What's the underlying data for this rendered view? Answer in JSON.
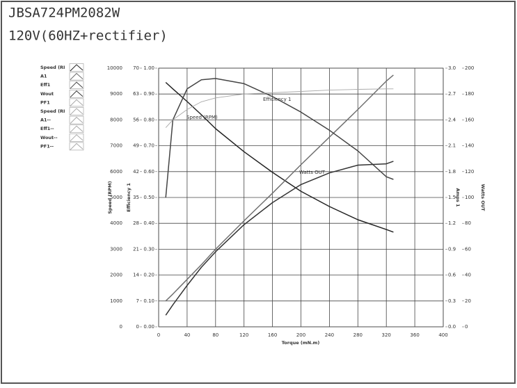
{
  "title": "JBSA724PM2082W",
  "subtitle": "120V(60HZ+rectifier)",
  "chart_data": {
    "type": "line",
    "x_label": "Torque (mN.m)",
    "xlim": [
      0,
      400
    ],
    "xticks": [
      0,
      40,
      80,
      120,
      160,
      200,
      240,
      280,
      320,
      360,
      400
    ],
    "grid": true,
    "axes": [
      {
        "title": "Speed (RPM)",
        "lim": [
          0,
          10000
        ],
        "ticks": [
          0,
          1000,
          2000,
          3000,
          4000,
          5000,
          6000,
          7000,
          8000,
          9000,
          10000
        ],
        "side": "left"
      },
      {
        "lim": [
          0,
          70
        ],
        "ticks": [
          0,
          7,
          14,
          21,
          28,
          35,
          42,
          49,
          56,
          63,
          70
        ],
        "side": "left"
      },
      {
        "title": "Efficiency 1",
        "lim": [
          0,
          1
        ],
        "ticks": [
          {
            "value": 0,
            "label": "0.00"
          },
          {
            "value": 0.1,
            "label": "0.10"
          },
          {
            "value": 0.2,
            "label": "0.20"
          },
          {
            "value": 0.3,
            "label": "0.30"
          },
          {
            "value": 0.4,
            "label": "0.40"
          },
          {
            "value": 0.5,
            "label": "0.50"
          },
          {
            "value": 0.6,
            "label": "0.60"
          },
          {
            "value": 0.7,
            "label": "0.70"
          },
          {
            "value": 0.8,
            "label": "0.80"
          },
          {
            "value": 0.9,
            "label": "0.90"
          },
          {
            "value": 1,
            "label": "1.00"
          }
        ],
        "side": "left"
      },
      {
        "title": "Amps 1",
        "lim": [
          0,
          3
        ],
        "ticks": [
          {
            "value": 0,
            "label": "0.0"
          },
          0.3,
          0.6,
          0.9,
          1.2,
          1.5,
          1.8,
          2.1,
          2.4,
          2.7,
          {
            "value": 3,
            "label": "3.0"
          }
        ],
        "side": "right"
      },
      {
        "title": "Watts OUT",
        "lim": [
          0,
          200
        ],
        "ticks": [
          0,
          20,
          40,
          60,
          80,
          100,
          120,
          140,
          160,
          180,
          200
        ],
        "side": "right"
      }
    ],
    "x": [
      10,
      20,
      40,
      60,
      80,
      120,
      160,
      200,
      240,
      280,
      320,
      330
    ],
    "series": [
      {
        "name": "Speed (RI",
        "color": "#222222",
        "axis": 0,
        "values": [
          9450,
          9200,
          8710,
          8200,
          7660,
          6770,
          5970,
          5240,
          4650,
          4140,
          3760,
          3660
        ]
      },
      {
        "name": "A1",
        "color": "#707070",
        "axis": 3,
        "values": [
          0.3,
          0.38,
          0.55,
          0.72,
          0.9,
          1.23,
          1.55,
          1.88,
          2.2,
          2.52,
          2.85,
          2.92
        ]
      },
      {
        "name": "Eff1",
        "color": "#444444",
        "axis": 2,
        "values": [
          0.5,
          0.8,
          0.92,
          0.955,
          0.96,
          0.94,
          0.89,
          0.83,
          0.76,
          0.68,
          0.58,
          0.57
        ]
      },
      {
        "name": "Wout",
        "color": "#333333",
        "axis": 4,
        "values": [
          9,
          17,
          32,
          46,
          58,
          79,
          96,
          110,
          119,
          125,
          126,
          128
        ]
      },
      {
        "name": "PF1",
        "color": "#a8a8a8",
        "axis": 2,
        "values": [
          0.77,
          0.8,
          0.84,
          0.87,
          0.885,
          0.9,
          0.905,
          0.91,
          0.915,
          0.918,
          0.92,
          0.92
        ]
      }
    ],
    "legend_extra": [
      "Speed (RI",
      "A1--",
      "Eff1--",
      "Wout--",
      "PF1--"
    ],
    "annotations": [
      "Speed (RPM)",
      "Efficiency 1",
      "Watts OUT"
    ]
  }
}
